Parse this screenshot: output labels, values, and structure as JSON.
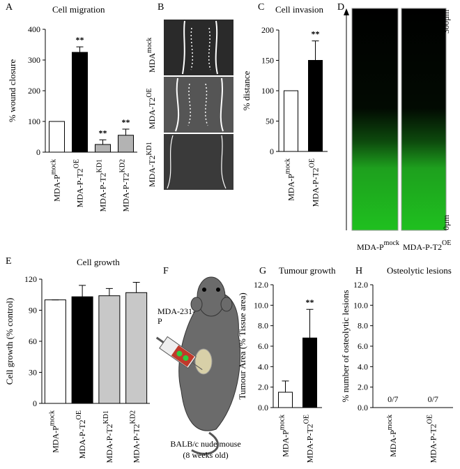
{
  "chart_data": [
    {
      "type": "bar",
      "panel": "A",
      "title": "Cell migration",
      "y_label": "% wound closure",
      "categories": [
        "MDA-P",
        "MDA-P-T2",
        "MDA-P-T2",
        "MDA-P-T2"
      ],
      "category_superscripts": [
        "mock",
        "OE",
        "KD1",
        "KD2"
      ],
      "values": [
        100,
        325,
        25,
        55
      ],
      "errors": [
        0,
        18,
        15,
        20
      ],
      "annotations": [
        null,
        "**",
        "**",
        "**"
      ],
      "colors": [
        "#ffffff",
        "#000000",
        "#b3b3b3",
        "#b3b3b3"
      ],
      "ylim": [
        0,
        400
      ],
      "yticks": [
        0,
        100,
        200,
        300,
        400
      ]
    },
    {
      "type": "bar",
      "panel": "C",
      "title": "Cell invasion",
      "y_label": "% distance",
      "categories": [
        "MDA-P",
        "MDA-P-T2"
      ],
      "category_superscripts": [
        "mock",
        "OE"
      ],
      "values": [
        100,
        150
      ],
      "errors": [
        0,
        32
      ],
      "annotations": [
        null,
        "**"
      ],
      "colors": [
        "#ffffff",
        "#000000"
      ],
      "ylim": [
        0,
        200
      ],
      "yticks": [
        0,
        50,
        100,
        150,
        200
      ]
    },
    {
      "type": "bar",
      "panel": "E",
      "title": "Cell growth",
      "y_label": "Cell growth (% control)",
      "categories": [
        "MDA-P",
        "MDA-P-T2",
        "MDA-P-T2",
        "MDA-P-T2"
      ],
      "category_superscripts": [
        "mock",
        "OE",
        "KD1",
        "KD2"
      ],
      "values": [
        100,
        103,
        104,
        107
      ],
      "errors": [
        0,
        11,
        7,
        10
      ],
      "colors": [
        "#ffffff",
        "#000000",
        "#c8c8c8",
        "#c8c8c8"
      ],
      "ylim": [
        0,
        120
      ],
      "yticks": [
        0,
        30,
        60,
        90,
        120
      ]
    },
    {
      "type": "bar",
      "panel": "G",
      "title": "Tumour growth",
      "y_label": "Tumour Area (% Tissue area)",
      "categories": [
        "MDA-P",
        "MDA-P-T2"
      ],
      "category_superscripts": [
        "mock",
        "OE"
      ],
      "values": [
        1.5,
        6.8
      ],
      "errors": [
        1.1,
        2.8
      ],
      "annotations": [
        null,
        "**"
      ],
      "colors": [
        "#ffffff",
        "#000000"
      ],
      "ylim": [
        0,
        12
      ],
      "yticks": [
        {
          "value": 0,
          "label": "0.0"
        },
        {
          "value": 2,
          "label": "2.0"
        },
        {
          "value": 4,
          "label": "4.0"
        },
        {
          "value": 6,
          "label": "6.0"
        },
        {
          "value": 8,
          "label": "8.0"
        },
        {
          "value": 10,
          "label": "10.0"
        },
        {
          "value": 12,
          "label": "12.0"
        }
      ]
    },
    {
      "type": "bar",
      "panel": "H",
      "title": "Osteolytic lesions",
      "y_label": "% number of osteolytic lesions",
      "categories": [
        "MDA-P",
        "MDA-P-T2"
      ],
      "category_superscripts": [
        "mock",
        "OE"
      ],
      "values": [
        0,
        0
      ],
      "value_labels": [
        "0/7",
        "0/7"
      ],
      "colors": [
        "#ffffff",
        "#000000"
      ],
      "ylim": [
        0,
        12
      ],
      "yticks": [
        {
          "value": 0,
          "label": "0.0"
        },
        {
          "value": 2,
          "label": "2.0"
        },
        {
          "value": 4,
          "label": "4.0"
        },
        {
          "value": 6,
          "label": "6.0"
        },
        {
          "value": 8,
          "label": "8.0"
        },
        {
          "value": 10,
          "label": "10.0"
        },
        {
          "value": 12,
          "label": "12.0"
        }
      ]
    }
  ],
  "panel_b": {
    "panel": "B",
    "labels": [
      {
        "text": "MDA",
        "sup": "mock"
      },
      {
        "text": "MDA-T2",
        "sup": "OE"
      },
      {
        "text": "MDA-T2",
        "sup": "KD1"
      }
    ]
  },
  "panel_d": {
    "panel": "D",
    "scale_top": "300µm",
    "scale_bottom": "0µm",
    "labels": [
      {
        "text": "MDA-P",
        "sup": "mock"
      },
      {
        "text": "MDA-P-T2",
        "sup": "OE"
      }
    ]
  },
  "panel_f": {
    "panel": "F",
    "cells": "MDA-231-",
    "cells_line2": "P",
    "mouse": "BALB/c nude mouse",
    "age": "(8 weeks old)"
  }
}
